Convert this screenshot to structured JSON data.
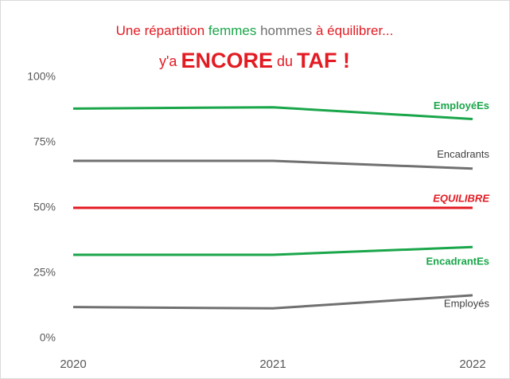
{
  "chart_data": {
    "type": "line",
    "title_lines": [
      [
        {
          "text": "Une répartition ",
          "color": "#e31b23"
        },
        {
          "text": "femmes",
          "color": "#1aa64a"
        },
        {
          "text": " hommes",
          "color": "#707070"
        },
        {
          "text": " à équilibrer...",
          "color": "#e31b23"
        }
      ],
      [
        {
          "text": "y'a ",
          "color": "#e31b23"
        },
        {
          "text": "ENCORE",
          "color": "#e31b23",
          "bold": true
        },
        {
          "text": " du ",
          "color": "#e31b23"
        },
        {
          "text": "TAF",
          "color": "#e31b23",
          "bold": true
        },
        {
          "text": " !",
          "color": "#e31b23",
          "bold": true
        }
      ]
    ],
    "categories": [
      "2020",
      "2021",
      "2022"
    ],
    "series": [
      {
        "name": "EmployéEs",
        "color": "#1aa64a",
        "values": [
          88,
          88.5,
          84
        ]
      },
      {
        "name": "Encadrants",
        "color": "#707070",
        "values": [
          68,
          68,
          65
        ]
      },
      {
        "name": "EQUILIBRE",
        "color": "#e31b23",
        "values": [
          50,
          50,
          50
        ]
      },
      {
        "name": "EncadrantEs",
        "color": "#1aa64a",
        "values": [
          32,
          32,
          35
        ]
      },
      {
        "name": "Employés",
        "color": "#707070",
        "values": [
          12,
          11.5,
          16.5
        ]
      }
    ],
    "ylim": [
      0,
      100
    ],
    "yticks": [
      {
        "value": 0,
        "label": "0%"
      },
      {
        "value": 25,
        "label": "25%"
      },
      {
        "value": 50,
        "label": "50%"
      },
      {
        "value": 75,
        "label": "75%"
      },
      {
        "value": 100,
        "label": "100%"
      }
    ],
    "grid": false
  }
}
